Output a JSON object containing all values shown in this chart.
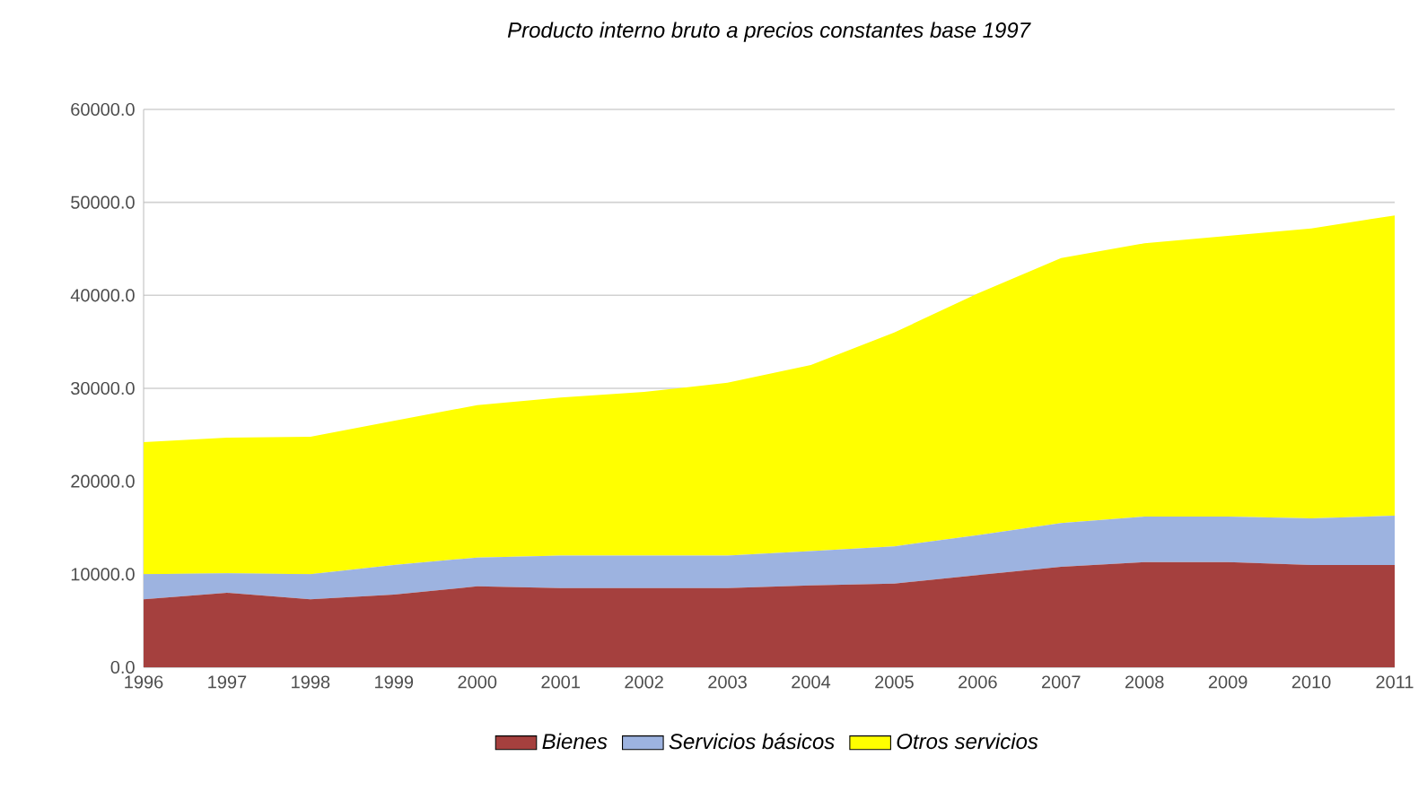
{
  "chart_data": {
    "type": "area",
    "stacked": true,
    "title": "*Producto interno bruto a precios constantes base 1997*",
    "categories": [
      "1996",
      "1997",
      "1998",
      "1999",
      "2000",
      "2001",
      "2002",
      "2003",
      "2004",
      "2005",
      "2006",
      "2007",
      "2008",
      "2009",
      "2010",
      "2011"
    ],
    "series": [
      {
        "name": "*Bienes*",
        "color": "#a5403e",
        "values": [
          7300,
          8000,
          7300,
          7800,
          8700,
          8500,
          8500,
          8500,
          8800,
          9000,
          9900,
          10800,
          11300,
          11300,
          11000,
          11000
        ]
      },
      {
        "name": "*Servicios básicos*",
        "color": "#9db3e0",
        "values": [
          2700,
          2100,
          2700,
          3200,
          3100,
          3500,
          3500,
          3500,
          3700,
          4000,
          4300,
          4700,
          4900,
          4900,
          5000,
          5300
        ]
      },
      {
        "name": "*Otros servicios*",
        "color": "#ffff00",
        "values": [
          14200,
          14600,
          14800,
          15500,
          16400,
          17000,
          17600,
          18600,
          20000,
          23000,
          26000,
          28500,
          29400,
          30200,
          31200,
          32300
        ]
      }
    ],
    "ylim": [
      0,
      60000
    ],
    "yticks": [
      {
        "value": 0,
        "label": "0.0"
      },
      {
        "value": 10000,
        "label": "10000.0"
      },
      {
        "value": 20000,
        "label": "20000.0"
      },
      {
        "value": 30000,
        "label": "30000.0"
      },
      {
        "value": 40000,
        "label": "40000.0"
      },
      {
        "value": 50000,
        "label": "50000.0"
      },
      {
        "value": 60000,
        "label": "60000.0"
      }
    ],
    "grid": "y",
    "legend": "bottom"
  }
}
